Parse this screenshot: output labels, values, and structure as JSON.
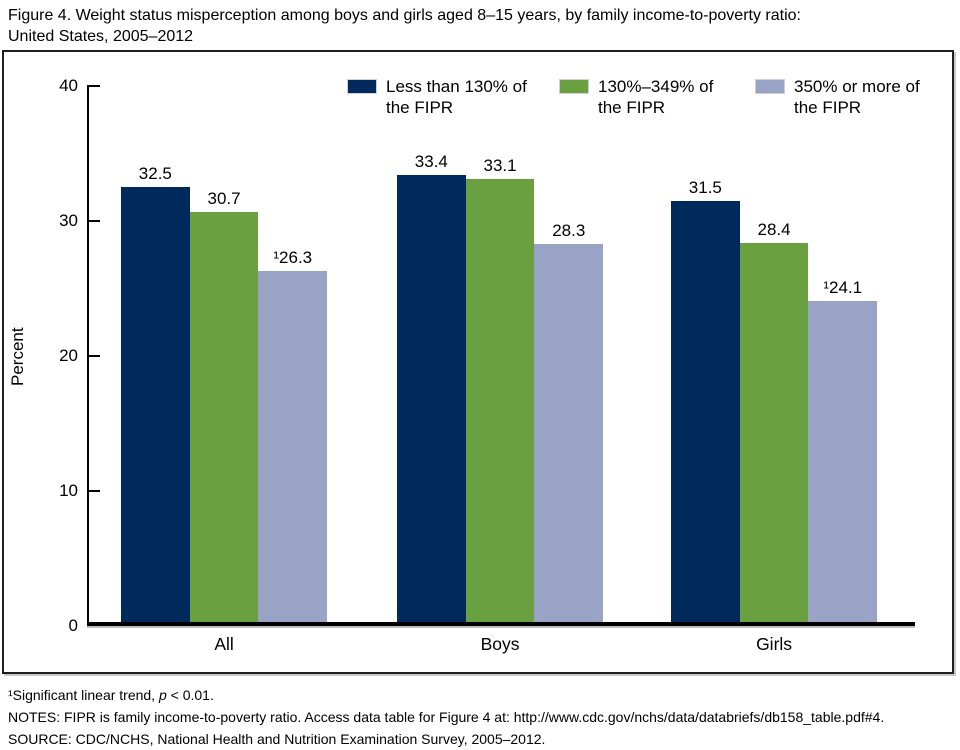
{
  "title": {
    "line1": "Figure 4. Weight status misperception among boys and girls aged 8–15 years, by family income-to-poverty ratio:",
    "line2": "United States, 2005–2012"
  },
  "legend": {
    "items": [
      {
        "line1": "Less than 130% of",
        "line2": "the FIPR",
        "color": "#002a5c"
      },
      {
        "line1": "130%–349% of",
        "line2": "the FIPR",
        "color": "#6ba041"
      },
      {
        "line1": "350% or more of",
        "line2": "the FIPR",
        "color": "#98a3c5"
      }
    ]
  },
  "chart_data": {
    "type": "bar",
    "title": "Figure 4. Weight status misperception among boys and girls aged 8–15 years, by family income-to-poverty ratio: United States, 2005–2012",
    "categories": [
      "All",
      "Boys",
      "Girls"
    ],
    "series": [
      {
        "name": "Less than 130% of the FIPR",
        "color": "#002a5c",
        "values": [
          32.5,
          33.4,
          31.5
        ],
        "labels": [
          "32.5",
          "33.4",
          "31.5"
        ]
      },
      {
        "name": "130%–349% of the FIPR",
        "color": "#6ba041",
        "values": [
          30.7,
          33.1,
          28.4
        ],
        "labels": [
          "30.7",
          "33.1",
          "28.4"
        ]
      },
      {
        "name": "350% or more of the FIPR",
        "color": "#98a3c5",
        "values": [
          26.3,
          28.3,
          24.1
        ],
        "labels": [
          "¹26.3",
          "28.3",
          "¹24.1"
        ]
      }
    ],
    "xlabel": "",
    "ylabel": "Percent",
    "ylim": [
      0,
      40
    ],
    "yticks": [
      0,
      10,
      20,
      30,
      40
    ],
    "grid": false,
    "legend_position": "top"
  },
  "footnotes": {
    "note1_pre": "¹Significant linear trend, ",
    "note1_italic": "p",
    "note1_post": " < 0.01.",
    "notes": "NOTES: FIPR is family income-to-poverty ratio. Access data table for Figure 4 at: http://www.cdc.gov/nchs/data/databriefs/db158_table.pdf#4.",
    "source": "SOURCE: CDC/NCHS, National Health and Nutrition Examination Survey, 2005–2012."
  }
}
